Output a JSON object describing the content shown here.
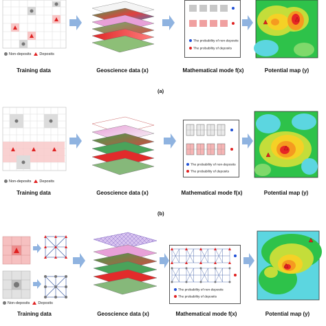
{
  "legend": {
    "non_deposits": "Non-deposits",
    "deposits": "Deposits",
    "prob_non_deposits": "The probability of non-deposits",
    "prob_deposits": "The probability of deposits"
  },
  "columns": {
    "training": "Training data",
    "geoscience": "Geoscience data (x)",
    "model": "Mathematical mode f(x)",
    "map": "Potential map (y)"
  },
  "panel_captions": [
    "(a)",
    "(b)"
  ],
  "colors": {
    "deposit_red": "#e02020",
    "non_deposit_gray": "#777777",
    "arrow_blue": "#8fb3e0",
    "prob_blue": "#1f4fd6"
  }
}
